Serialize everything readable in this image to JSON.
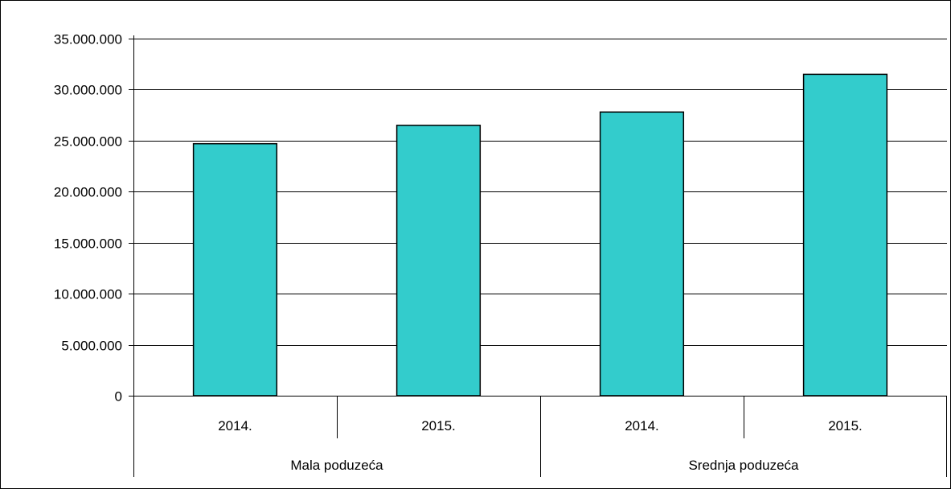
{
  "chart_data": {
    "type": "bar",
    "groups": [
      {
        "label": "Mala poduzeća",
        "categories": [
          "2014.",
          "2015."
        ],
        "values": [
          24700000,
          26500000
        ]
      },
      {
        "label": "Srednja poduzeća",
        "categories": [
          "2014.",
          "2015."
        ],
        "values": [
          27800000,
          31500000
        ]
      }
    ],
    "y_ticks": [
      "0",
      "5.000.000",
      "10.000.000",
      "15.000.000",
      "20.000.000",
      "25.000.000",
      "30.000.000",
      "35.000.000"
    ],
    "y_tick_values": [
      0,
      5000000,
      10000000,
      15000000,
      20000000,
      25000000,
      30000000,
      35000000
    ],
    "ylim": [
      0,
      35000000
    ],
    "grid": true,
    "legend": "none",
    "title": "",
    "xlabel": "",
    "ylabel": ""
  },
  "colors": {
    "bar": "#33CCCC",
    "bar_stroke": "#000000",
    "gridline": "#000000",
    "background": "#ffffff"
  }
}
